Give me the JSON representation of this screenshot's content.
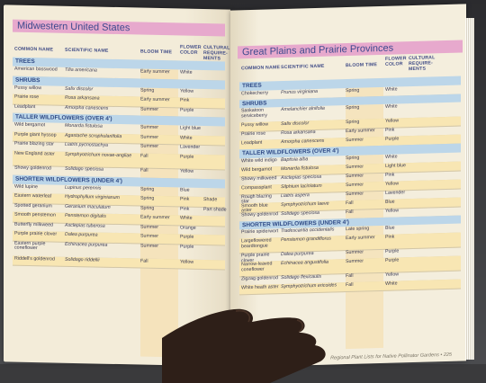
{
  "left": {
    "title": "Midwestern United States",
    "headers": [
      "COMMON NAME",
      "SCIENTIFIC NAME",
      "BLOOM TIME",
      "FLOWER COLOR",
      "CULTURAL REQUIRE-MENTS"
    ],
    "sections": [
      {
        "label": "TREES",
        "rows": [
          {
            "common": "American basswood",
            "scientific": "Tilia americana",
            "bloom": "Early summer",
            "color": "White",
            "cultural": ""
          }
        ]
      },
      {
        "label": "SHRUBS",
        "rows": [
          {
            "common": "Pussy willow",
            "scientific": "Salix discolor",
            "bloom": "Spring",
            "color": "Yellow",
            "cultural": ""
          },
          {
            "common": "Prairie rose",
            "scientific": "Rosa arkansana",
            "bloom": "Early summer",
            "color": "Pink",
            "cultural": ""
          },
          {
            "common": "Leadplant",
            "scientific": "Amorpha canescens",
            "bloom": "Summer",
            "color": "Purple",
            "cultural": ""
          }
        ]
      },
      {
        "label": "TALLER WILDFLOWERS (OVER 4')",
        "rows": [
          {
            "common": "Wild bergamot",
            "scientific": "Monarda fistulosa",
            "bloom": "Summer",
            "color": "Light blue",
            "cultural": ""
          },
          {
            "common": "Purple giant hyssop",
            "scientific": "Agastache scrophulariifolia",
            "bloom": "Summer",
            "color": "White",
            "cultural": ""
          },
          {
            "common": "Prairie blazing star",
            "scientific": "Liatris pycnostachya",
            "bloom": "Summer",
            "color": "Lavender",
            "cultural": ""
          },
          {
            "common": "New England aster",
            "scientific": "Symphyotrichum novae-angliae",
            "bloom": "Fall",
            "color": "Purple",
            "cultural": ""
          },
          {
            "common": "Showy goldenrod",
            "scientific": "Solidago speciosa",
            "bloom": "Fall",
            "color": "Yellow",
            "cultural": ""
          }
        ]
      },
      {
        "label": "SHORTER WILDFLOWERS (UNDER 4')",
        "rows": [
          {
            "common": "Wild lupine",
            "scientific": "Lupinus perennis",
            "bloom": "Spring",
            "color": "Blue",
            "cultural": ""
          },
          {
            "common": "Eastern waterleaf",
            "scientific": "Hydrophyllum virginianum",
            "bloom": "Spring",
            "color": "Pink",
            "cultural": "Shade"
          },
          {
            "common": "Spotted geranium",
            "scientific": "Geranium maculatum",
            "bloom": "Spring",
            "color": "Pink",
            "cultural": "Part shade"
          },
          {
            "common": "Smooth penstemon",
            "scientific": "Penstemon digitalis",
            "bloom": "Early summer",
            "color": "White",
            "cultural": ""
          },
          {
            "common": "Butterfly milkweed",
            "scientific": "Asclepias tuberosa",
            "bloom": "Summer",
            "color": "Orange",
            "cultural": ""
          },
          {
            "common": "Purple prairie clover",
            "scientific": "Dalea purpurea",
            "bloom": "Summer",
            "color": "Purple",
            "cultural": ""
          },
          {
            "common": "Eastern purple coneflower",
            "scientific": "Echinacea purpurea",
            "bloom": "Summer",
            "color": "Purple",
            "cultural": ""
          },
          {
            "common": "Riddell's goldenrod",
            "scientific": "Solidago riddellii",
            "bloom": "Fall",
            "color": "Yellow",
            "cultural": ""
          }
        ]
      }
    ]
  },
  "right": {
    "title": "Great Plains and Prairie Provinces",
    "headers": [
      "COMMON NAME",
      "SCIENTIFIC NAME",
      "BLOOM TIME",
      "FLOWER COLOR",
      "CULTURAL REQUIRE-MENTS"
    ],
    "sections": [
      {
        "label": "TREES",
        "rows": [
          {
            "common": "Chokecherry",
            "scientific": "Prunus virginiana",
            "bloom": "Spring",
            "color": "White",
            "cultural": ""
          }
        ]
      },
      {
        "label": "SHRUBS",
        "rows": [
          {
            "common": "Saskatoon serviceberry",
            "scientific": "Amelanchier alnifolia",
            "bloom": "Spring",
            "color": "White",
            "cultural": ""
          },
          {
            "common": "Pussy willow",
            "scientific": "Salix discolor",
            "bloom": "Spring",
            "color": "Yellow",
            "cultural": ""
          },
          {
            "common": "Prairie rose",
            "scientific": "Rosa arkansana",
            "bloom": "Early summer",
            "color": "Pink",
            "cultural": ""
          },
          {
            "common": "Leadplant",
            "scientific": "Amorpha canescens",
            "bloom": "Summer",
            "color": "Purple",
            "cultural": ""
          }
        ]
      },
      {
        "label": "TALLER WILDFLOWERS (OVER 4')",
        "rows": [
          {
            "common": "White wild indigo",
            "scientific": "Baptisia alba",
            "bloom": "Spring",
            "color": "White",
            "cultural": ""
          },
          {
            "common": "Wild bergamot",
            "scientific": "Monarda fistulosa",
            "bloom": "Summer",
            "color": "Light blue",
            "cultural": ""
          },
          {
            "common": "Showy milkweed",
            "scientific": "Asclepias speciosa",
            "bloom": "Summer",
            "color": "Pink",
            "cultural": ""
          },
          {
            "common": "Compassplant",
            "scientific": "Silphium laciniatum",
            "bloom": "Summer",
            "color": "Yellow",
            "cultural": ""
          },
          {
            "common": "Rough blazing star",
            "scientific": "Liatris aspera",
            "bloom": "Summer",
            "color": "Lavender",
            "cultural": ""
          },
          {
            "common": "Smooth blue aster",
            "scientific": "Symphyotrichum laeve",
            "bloom": "Fall",
            "color": "Blue",
            "cultural": ""
          },
          {
            "common": "Showy goldenrod",
            "scientific": "Solidago speciosa",
            "bloom": "Fall",
            "color": "Yellow",
            "cultural": ""
          }
        ]
      },
      {
        "label": "SHORTER WILDFLOWERS (UNDER 4')",
        "rows": [
          {
            "common": "Prairie spiderwort",
            "scientific": "Tradescantia occidentalis",
            "bloom": "Late spring",
            "color": "Blue",
            "cultural": ""
          },
          {
            "common": "Largeflowered beardtongue",
            "scientific": "Penstemon grandiflorus",
            "bloom": "Early summer",
            "color": "Pink",
            "cultural": ""
          },
          {
            "common": "Purple prairie clover",
            "scientific": "Dalea purpurea",
            "bloom": "Summer",
            "color": "Purple",
            "cultural": ""
          },
          {
            "common": "Narrow-leaved coneflower",
            "scientific": "Echinacea angustifolia",
            "bloom": "Summer",
            "color": "Purple",
            "cultural": ""
          },
          {
            "common": "Zigzag goldenrod",
            "scientific": "Solidago flexicaulis",
            "bloom": "Fall",
            "color": "Yellow",
            "cultural": ""
          },
          {
            "common": "White heath aster",
            "scientific": "Symphyotrichum ericoides",
            "bloom": "Fall",
            "color": "White",
            "cultural": ""
          }
        ]
      }
    ],
    "footer": "Regional Plant Lists for Native Pollinator Gardens",
    "page_number": "225"
  }
}
